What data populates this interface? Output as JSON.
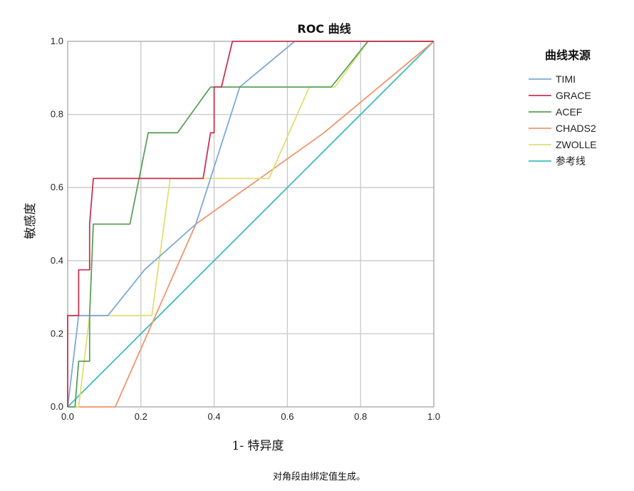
{
  "chart_data": {
    "type": "line",
    "title": "ROC 曲线",
    "xlabel": "1- 特异度",
    "ylabel": "敏感度",
    "xlim": [
      0,
      1
    ],
    "ylim": [
      0,
      1
    ],
    "x_ticks": [
      "0.0",
      "0.2",
      "0.4",
      "0.6",
      "0.8",
      "1.0"
    ],
    "y_ticks": [
      "0.0",
      "0.2",
      "0.4",
      "0.6",
      "0.8",
      "1.0"
    ],
    "grid": true,
    "legend_title": "曲线来源",
    "legend_position": "right",
    "footnote": "对角段由绑定值生成。",
    "series": [
      {
        "name": "TIMI",
        "color": "#7ea9d8",
        "points": [
          [
            0,
            0
          ],
          [
            0.03,
            0.25
          ],
          [
            0.11,
            0.25
          ],
          [
            0.21,
            0.375
          ],
          [
            0.35,
            0.5
          ],
          [
            0.47,
            0.875
          ],
          [
            0.62,
            1.0
          ],
          [
            1.0,
            1.0
          ]
        ]
      },
      {
        "name": "GRACE",
        "color": "#c9344f",
        "points": [
          [
            0,
            0
          ],
          [
            0,
            0.25
          ],
          [
            0.03,
            0.25
          ],
          [
            0.03,
            0.375
          ],
          [
            0.06,
            0.375
          ],
          [
            0.06,
            0.5
          ],
          [
            0.07,
            0.625
          ],
          [
            0.37,
            0.625
          ],
          [
            0.39,
            0.75
          ],
          [
            0.4,
            0.75
          ],
          [
            0.4,
            0.875
          ],
          [
            0.42,
            0.875
          ],
          [
            0.45,
            1.0
          ],
          [
            1.0,
            1.0
          ]
        ]
      },
      {
        "name": "ACEF",
        "color": "#5aa05a",
        "points": [
          [
            0,
            0
          ],
          [
            0.02,
            0
          ],
          [
            0.03,
            0.125
          ],
          [
            0.06,
            0.125
          ],
          [
            0.06,
            0.25
          ],
          [
            0.07,
            0.5
          ],
          [
            0.17,
            0.5
          ],
          [
            0.22,
            0.75
          ],
          [
            0.3,
            0.75
          ],
          [
            0.39,
            0.875
          ],
          [
            0.72,
            0.875
          ],
          [
            0.82,
            1.0
          ],
          [
            1.0,
            1.0
          ]
        ]
      },
      {
        "name": "CHADS2",
        "color": "#f0956e",
        "points": [
          [
            0,
            0
          ],
          [
            0.13,
            0
          ],
          [
            0.35,
            0.5
          ],
          [
            0.7,
            0.75
          ],
          [
            1.0,
            1.0
          ]
        ]
      },
      {
        "name": "ZWOLLE",
        "color": "#e0df74",
        "points": [
          [
            0,
            0
          ],
          [
            0.03,
            0
          ],
          [
            0.06,
            0.25
          ],
          [
            0.23,
            0.25
          ],
          [
            0.28,
            0.625
          ],
          [
            0.55,
            0.625
          ],
          [
            0.66,
            0.875
          ],
          [
            0.73,
            0.875
          ],
          [
            0.82,
            1.0
          ],
          [
            1.0,
            1.0
          ]
        ]
      },
      {
        "name": "参考线",
        "color": "#3ebdbd",
        "points": [
          [
            0,
            0
          ],
          [
            1.0,
            1.0
          ]
        ]
      }
    ]
  }
}
